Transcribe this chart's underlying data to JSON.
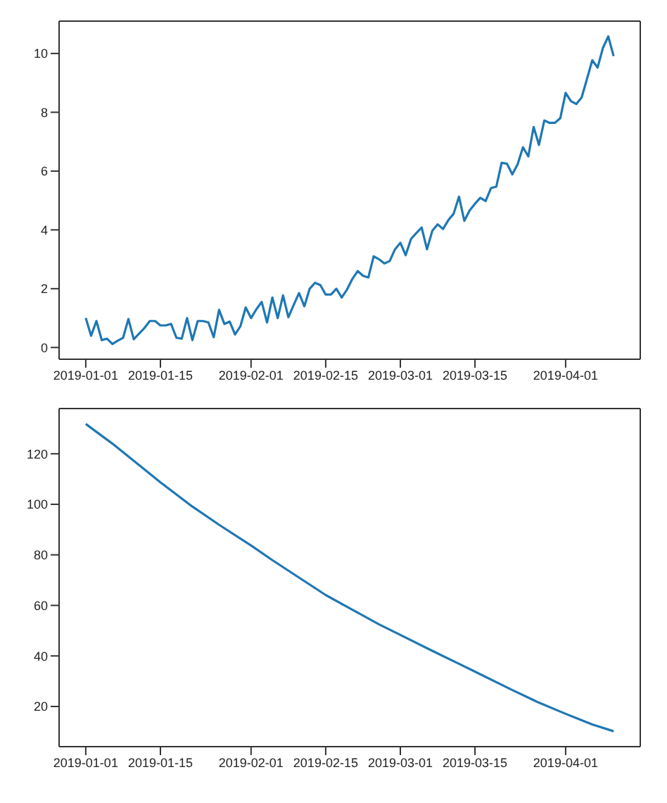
{
  "chart_data": [
    {
      "type": "line",
      "xlim": [
        "2018-12-27",
        "2019-04-15"
      ],
      "ylim": [
        -0.4,
        11.1
      ],
      "yticks": [
        0,
        2,
        4,
        6,
        8,
        10
      ],
      "xticks": [
        "2019-01-01",
        "2019-01-15",
        "2019-02-01",
        "2019-02-15",
        "2019-03-01",
        "2019-03-15",
        "2019-04-01"
      ],
      "legend": false,
      "marker": "none",
      "line_style": "solid",
      "x": [
        "2019-01-01",
        "2019-01-02",
        "2019-01-03",
        "2019-01-04",
        "2019-01-05",
        "2019-01-06",
        "2019-01-07",
        "2019-01-08",
        "2019-01-09",
        "2019-01-10",
        "2019-01-11",
        "2019-01-12",
        "2019-01-13",
        "2019-01-14",
        "2019-01-15",
        "2019-01-16",
        "2019-01-17",
        "2019-01-18",
        "2019-01-19",
        "2019-01-20",
        "2019-01-21",
        "2019-01-22",
        "2019-01-23",
        "2019-01-24",
        "2019-01-25",
        "2019-01-26",
        "2019-01-27",
        "2019-01-28",
        "2019-01-29",
        "2019-01-30",
        "2019-01-31",
        "2019-02-01",
        "2019-02-02",
        "2019-02-03",
        "2019-02-04",
        "2019-02-05",
        "2019-02-06",
        "2019-02-07",
        "2019-02-08",
        "2019-02-09",
        "2019-02-10",
        "2019-02-11",
        "2019-02-12",
        "2019-02-13",
        "2019-02-14",
        "2019-02-15",
        "2019-02-16",
        "2019-02-17",
        "2019-02-18",
        "2019-02-19",
        "2019-02-20",
        "2019-02-21",
        "2019-02-22",
        "2019-02-23",
        "2019-02-24",
        "2019-02-25",
        "2019-02-26",
        "2019-02-27",
        "2019-02-28",
        "2019-03-01",
        "2019-03-02",
        "2019-03-03",
        "2019-03-04",
        "2019-03-05",
        "2019-03-06",
        "2019-03-07",
        "2019-03-08",
        "2019-03-09",
        "2019-03-10",
        "2019-03-11",
        "2019-03-12",
        "2019-03-13",
        "2019-03-14",
        "2019-03-15",
        "2019-03-16",
        "2019-03-17",
        "2019-03-18",
        "2019-03-19",
        "2019-03-20",
        "2019-03-21",
        "2019-03-22",
        "2019-03-23",
        "2019-03-24",
        "2019-03-25",
        "2019-03-26",
        "2019-03-27",
        "2019-03-28",
        "2019-03-29",
        "2019-03-30",
        "2019-03-31",
        "2019-04-01",
        "2019-04-02",
        "2019-04-03",
        "2019-04-04",
        "2019-04-05",
        "2019-04-06",
        "2019-04-07",
        "2019-04-08",
        "2019-04-09",
        "2019-04-10"
      ],
      "series": [
        {
          "color": "#1f77b4",
          "values": [
            1.0,
            0.4,
            0.9,
            0.25,
            0.3,
            0.12,
            0.23,
            0.33,
            0.97,
            0.28,
            0.47,
            0.66,
            0.9,
            0.9,
            0.75,
            0.75,
            0.8,
            0.33,
            0.3,
            1.0,
            0.25,
            0.9,
            0.9,
            0.85,
            0.35,
            1.28,
            0.8,
            0.88,
            0.44,
            0.72,
            1.36,
            1.0,
            1.3,
            1.55,
            0.85,
            1.7,
            1.0,
            1.77,
            1.03,
            1.45,
            1.85,
            1.4,
            2.0,
            2.2,
            2.12,
            1.8,
            1.8,
            2.0,
            1.7,
            1.97,
            2.33,
            2.6,
            2.44,
            2.38,
            3.1,
            3.0,
            2.86,
            2.94,
            3.34,
            3.56,
            3.14,
            3.69,
            3.89,
            4.08,
            3.34,
            3.97,
            4.19,
            4.03,
            4.33,
            4.55,
            5.13,
            4.31,
            4.66,
            4.89,
            5.09,
            4.98,
            5.42,
            5.47,
            6.28,
            6.25,
            5.89,
            6.23,
            6.81,
            6.5,
            7.5,
            6.89,
            7.72,
            7.64,
            7.64,
            7.8,
            8.66,
            8.38,
            8.28,
            8.5,
            9.13,
            9.77,
            9.52,
            10.19,
            10.58,
            9.91
          ]
        }
      ]
    },
    {
      "type": "line",
      "xlim": [
        "2018-12-27",
        "2019-04-15"
      ],
      "ylim": [
        4.1,
        137.9
      ],
      "yticks": [
        20,
        40,
        60,
        80,
        100,
        120
      ],
      "xticks": [
        "2019-01-01",
        "2019-01-15",
        "2019-02-01",
        "2019-02-15",
        "2019-03-01",
        "2019-03-15",
        "2019-04-01"
      ],
      "legend": false,
      "marker": "none",
      "line_style": "solid",
      "x": [
        "2019-01-01",
        "2019-01-06",
        "2019-01-11",
        "2019-01-15",
        "2019-01-21",
        "2019-01-26",
        "2019-02-01",
        "2019-02-05",
        "2019-02-10",
        "2019-02-15",
        "2019-02-20",
        "2019-02-25",
        "2019-03-01",
        "2019-03-07",
        "2019-03-12",
        "2019-03-15",
        "2019-03-22",
        "2019-03-27",
        "2019-04-01",
        "2019-04-06",
        "2019-04-10"
      ],
      "series": [
        {
          "color": "#1f77b4",
          "values": [
            131.8,
            124.0,
            115.5,
            108.7,
            99.1,
            91.9,
            83.7,
            77.9,
            71.0,
            64.1,
            58.3,
            52.5,
            48.3,
            42.0,
            36.9,
            33.8,
            26.5,
            21.5,
            17.1,
            12.9,
            10.2
          ]
        }
      ]
    }
  ]
}
